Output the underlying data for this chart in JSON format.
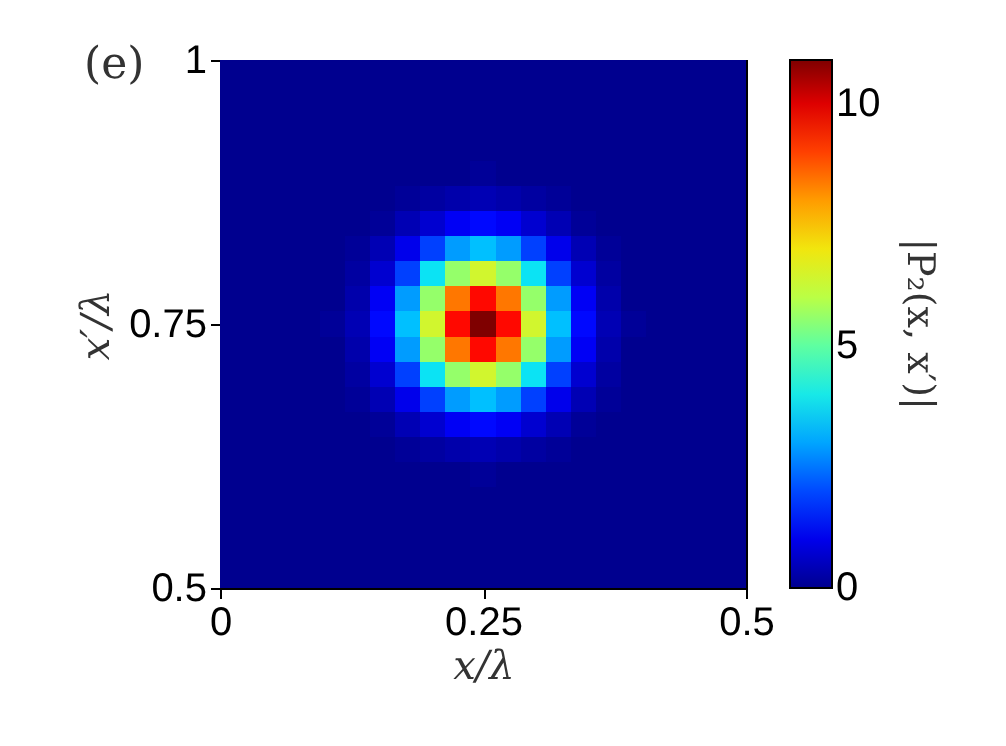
{
  "chart_data": {
    "type": "heatmap",
    "annotations": [
      "(e)"
    ],
    "xlabel": "x/λ",
    "ylabel": "x′/λ",
    "clabel": "|P₂(x, x′)|",
    "xlim": [
      0,
      0.5
    ],
    "xticks": [
      0,
      0.25,
      0.5
    ],
    "ylim": [
      0.5,
      1
    ],
    "yticks": [
      0.5,
      0.75,
      1
    ],
    "clim": [
      0,
      10.9
    ],
    "cticks": [
      0,
      5,
      10
    ],
    "cells": [
      [
        0,
        0,
        0,
        0,
        0,
        0,
        0,
        0,
        0,
        0,
        0,
        0,
        0,
        0,
        0,
        0,
        0,
        0,
        0,
        0,
        0
      ],
      [
        0,
        0,
        0,
        0,
        0,
        0,
        0,
        0,
        0,
        0,
        0,
        0,
        0,
        0,
        0,
        0,
        0,
        0,
        0,
        0,
        0
      ],
      [
        0,
        0,
        0,
        0,
        0,
        0,
        0,
        0,
        0,
        0,
        0,
        0,
        0,
        0,
        0,
        0,
        0,
        0,
        0,
        0,
        0
      ],
      [
        0,
        0,
        0,
        0,
        0,
        0,
        0,
        0,
        0,
        0,
        0,
        0,
        0,
        0,
        0,
        0,
        0,
        0,
        0,
        0,
        0
      ],
      [
        0,
        0,
        0,
        0,
        0,
        0,
        0,
        0,
        0,
        0,
        0.1,
        0,
        0,
        0,
        0,
        0,
        0,
        0,
        0,
        0,
        0
      ],
      [
        0,
        0,
        0,
        0,
        0,
        0,
        0,
        0.1,
        0.2,
        0.3,
        0.4,
        0.3,
        0.2,
        0.1,
        0,
        0,
        0,
        0,
        0,
        0,
        0
      ],
      [
        0,
        0,
        0,
        0,
        0,
        0,
        0.1,
        0.4,
        0.7,
        1.1,
        1.3,
        1.1,
        0.7,
        0.4,
        0.1,
        0,
        0,
        0,
        0,
        0,
        0
      ],
      [
        0,
        0,
        0,
        0,
        0,
        0.1,
        0.4,
        1.0,
        1.9,
        2.9,
        3.3,
        2.9,
        1.9,
        1.0,
        0.4,
        0.1,
        0,
        0,
        0,
        0,
        0
      ],
      [
        0,
        0,
        0,
        0,
        0,
        0.2,
        0.7,
        1.9,
        3.8,
        5.6,
        6.4,
        5.6,
        3.8,
        1.9,
        0.7,
        0.2,
        0,
        0,
        0,
        0,
        0
      ],
      [
        0,
        0,
        0,
        0,
        0,
        0.3,
        1.1,
        2.9,
        5.6,
        8.4,
        9.6,
        8.4,
        5.6,
        2.9,
        1.1,
        0.3,
        0,
        0,
        0,
        0,
        0
      ],
      [
        0,
        0,
        0,
        0,
        0.1,
        0.4,
        1.3,
        3.3,
        6.4,
        9.6,
        10.9,
        9.6,
        6.4,
        3.3,
        1.3,
        0.4,
        0.1,
        0,
        0,
        0,
        0
      ],
      [
        0,
        0,
        0,
        0,
        0,
        0.3,
        1.1,
        2.9,
        5.6,
        8.4,
        9.6,
        8.4,
        5.6,
        2.9,
        1.1,
        0.3,
        0,
        0,
        0,
        0,
        0
      ],
      [
        0,
        0,
        0,
        0,
        0,
        0.2,
        0.7,
        1.9,
        3.8,
        5.6,
        6.4,
        5.6,
        3.8,
        1.9,
        0.7,
        0.2,
        0,
        0,
        0,
        0,
        0
      ],
      [
        0,
        0,
        0,
        0,
        0,
        0.1,
        0.4,
        1.0,
        1.9,
        2.9,
        3.3,
        2.9,
        1.9,
        1.0,
        0.4,
        0.1,
        0,
        0,
        0,
        0,
        0
      ],
      [
        0,
        0,
        0,
        0,
        0,
        0,
        0.1,
        0.4,
        0.7,
        1.1,
        1.3,
        1.1,
        0.7,
        0.4,
        0.1,
        0,
        0,
        0,
        0,
        0,
        0
      ],
      [
        0,
        0,
        0,
        0,
        0,
        0,
        0,
        0.1,
        0.2,
        0.3,
        0.4,
        0.3,
        0.2,
        0.1,
        0,
        0,
        0,
        0,
        0,
        0,
        0
      ],
      [
        0,
        0,
        0,
        0,
        0,
        0,
        0,
        0,
        0,
        0,
        0.1,
        0,
        0,
        0,
        0,
        0,
        0,
        0,
        0,
        0,
        0
      ],
      [
        0,
        0,
        0,
        0,
        0,
        0,
        0,
        0,
        0,
        0,
        0,
        0,
        0,
        0,
        0,
        0,
        0,
        0,
        0,
        0,
        0
      ],
      [
        0,
        0,
        0,
        0,
        0,
        0,
        0,
        0,
        0,
        0,
        0,
        0,
        0,
        0,
        0,
        0,
        0,
        0,
        0,
        0,
        0
      ],
      [
        0,
        0,
        0,
        0,
        0,
        0,
        0,
        0,
        0,
        0,
        0,
        0,
        0,
        0,
        0,
        0,
        0,
        0,
        0,
        0,
        0
      ],
      [
        0,
        0,
        0,
        0,
        0,
        0,
        0,
        0,
        0,
        0,
        0,
        0,
        0,
        0,
        0,
        0,
        0,
        0,
        0,
        0,
        0
      ]
    ]
  }
}
